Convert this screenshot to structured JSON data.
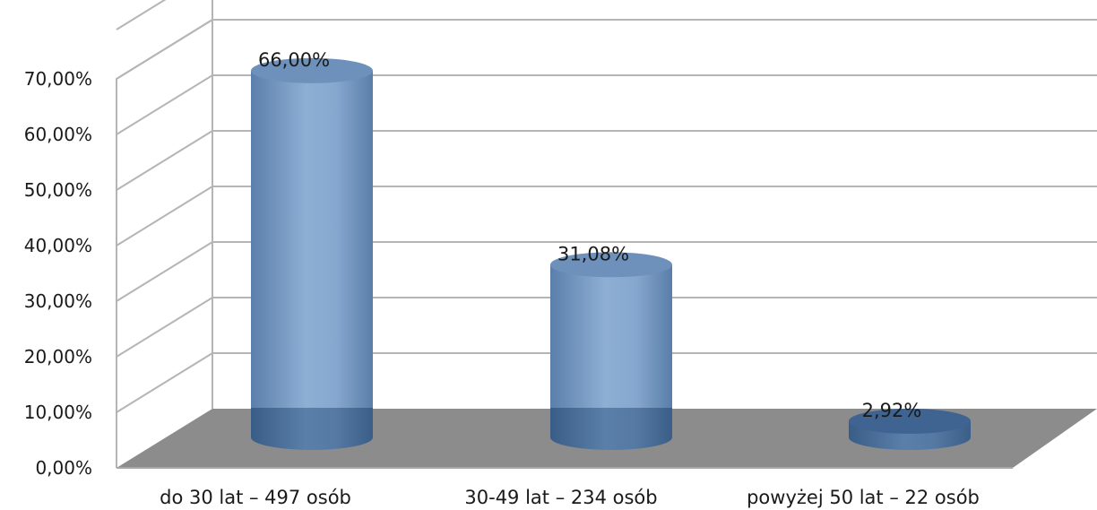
{
  "chart_data": {
    "type": "bar",
    "style": "3d-cylinder",
    "categories": [
      "do 30 lat – 497 osób",
      "30-49 lat – 234 osób",
      "powyżej 50 lat – 22 osób"
    ],
    "values": [
      66.0,
      31.08,
      2.92
    ],
    "data_labels": [
      "66,00%",
      "31,08%",
      "2,92%"
    ],
    "ylim": [
      0,
      70
    ],
    "yticks": [
      0,
      10,
      20,
      30,
      40,
      50,
      60,
      70
    ],
    "ytick_labels": [
      "0,00%",
      "10,00%",
      "20,00%",
      "30,00%",
      "40,00%",
      "50,00%",
      "60,00%",
      "70,00%"
    ],
    "grid": true,
    "colors": {
      "bar_light": "#8daed3",
      "bar_mid": "#6d91bb",
      "bar_dark": "#3f6491",
      "floor": "#8c8c8c",
      "gridline": "#b5b5b5"
    }
  }
}
